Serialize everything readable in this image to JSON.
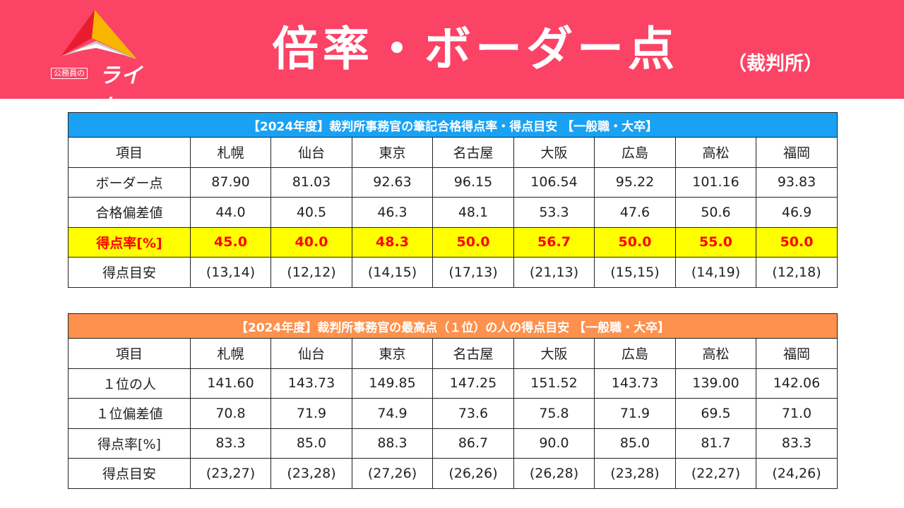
{
  "logo": {
    "sub_label": "公務員の",
    "name": "ライト"
  },
  "header": {
    "title": "倍率・ボーダー点",
    "subtitle": "（裁判所）"
  },
  "colors": {
    "header_bg": "#fb4365",
    "table1_caption_bg": "#19a2f4",
    "table2_caption_bg": "#fd914d",
    "highlight_bg": "#ffff00",
    "highlight_text": "#ff0000"
  },
  "table1": {
    "caption": "【2024年度】裁判所事務官の筆記合格得点率・得点目安 【一般職・大卒】",
    "columns": [
      "項目",
      "札幌",
      "仙台",
      "東京",
      "名古屋",
      "大阪",
      "広島",
      "高松",
      "福岡"
    ],
    "rows": [
      {
        "label": "ボーダー点",
        "values": [
          "87.90",
          "81.03",
          "92.63",
          "96.15",
          "106.54",
          "95.22",
          "101.16",
          "93.83"
        ],
        "highlight": false
      },
      {
        "label": "合格偏差値",
        "values": [
          "44.0",
          "40.5",
          "46.3",
          "48.1",
          "53.3",
          "47.6",
          "50.6",
          "46.9"
        ],
        "highlight": false
      },
      {
        "label": "得点率[%]",
        "values": [
          "45.0",
          "40.0",
          "48.3",
          "50.0",
          "56.7",
          "50.0",
          "55.0",
          "50.0"
        ],
        "highlight": true
      },
      {
        "label": "得点目安",
        "values": [
          "(13,14)",
          "(12,12)",
          "(14,15)",
          "(17,13)",
          "(21,13)",
          "(15,15)",
          "(14,19)",
          "(12,18)"
        ],
        "highlight": false
      }
    ]
  },
  "table2": {
    "caption": "【2024年度】裁判所事務官の最高点（１位）の人の得点目安 【一般職・大卒】",
    "columns": [
      "項目",
      "札幌",
      "仙台",
      "東京",
      "名古屋",
      "大阪",
      "広島",
      "高松",
      "福岡"
    ],
    "rows": [
      {
        "label": "１位の人",
        "values": [
          "141.60",
          "143.73",
          "149.85",
          "147.25",
          "151.52",
          "143.73",
          "139.00",
          "142.06"
        ],
        "highlight": false
      },
      {
        "label": "１位偏差値",
        "values": [
          "70.8",
          "71.9",
          "74.9",
          "73.6",
          "75.8",
          "71.9",
          "69.5",
          "71.0"
        ],
        "highlight": false
      },
      {
        "label": "得点率[%]",
        "values": [
          "83.3",
          "85.0",
          "88.3",
          "86.7",
          "90.0",
          "85.0",
          "81.7",
          "83.3"
        ],
        "highlight": false
      },
      {
        "label": "得点目安",
        "values": [
          "(23,27)",
          "(23,28)",
          "(27,26)",
          "(26,26)",
          "(26,28)",
          "(23,28)",
          "(22,27)",
          "(24,26)"
        ],
        "highlight": false
      }
    ]
  }
}
